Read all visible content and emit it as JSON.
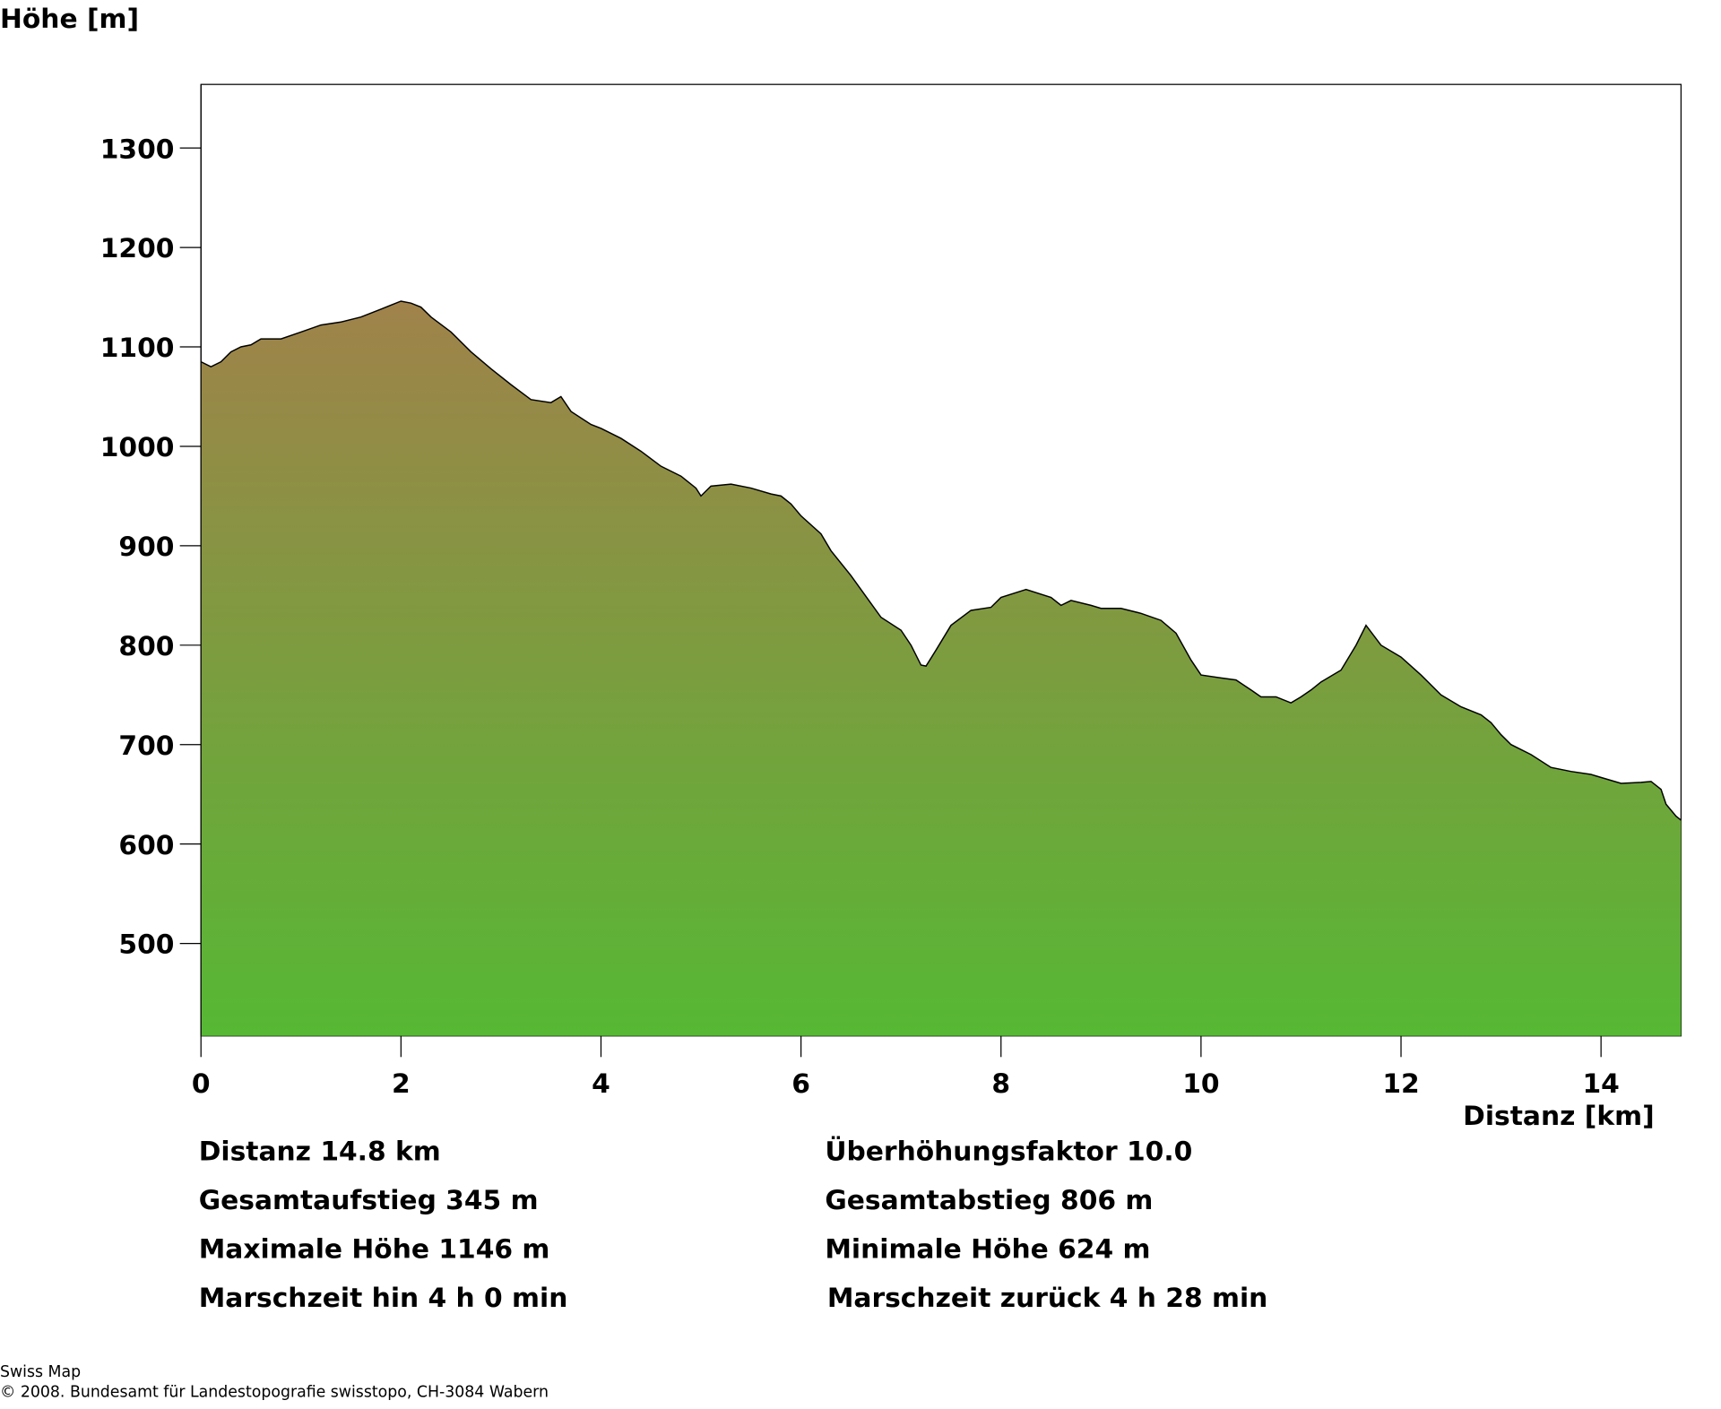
{
  "chart_data": {
    "type": "area",
    "title": "",
    "ylabel": "Höhe [m]",
    "xlabel": "Distanz [km]",
    "xlim": [
      0,
      14.8
    ],
    "ylim": [
      407,
      1364
    ],
    "xticks": [
      0,
      2,
      4,
      6,
      8,
      10,
      12,
      14
    ],
    "yticks": [
      500,
      600,
      700,
      800,
      900,
      1000,
      1100,
      1200,
      1300
    ],
    "grid": false,
    "colors": {
      "top": "#a0824a",
      "bottom": "#56b834",
      "outline": "#000000"
    },
    "x": [
      0,
      0.1,
      0.2,
      0.3,
      0.4,
      0.5,
      0.6,
      0.8,
      1.0,
      1.2,
      1.4,
      1.6,
      1.8,
      1.9,
      2.0,
      2.1,
      2.2,
      2.3,
      2.5,
      2.7,
      2.9,
      3.1,
      3.3,
      3.5,
      3.6,
      3.7,
      3.9,
      4.0,
      4.2,
      4.4,
      4.6,
      4.8,
      4.95,
      5.0,
      5.1,
      5.3,
      5.5,
      5.7,
      5.8,
      5.9,
      6.0,
      6.2,
      6.3,
      6.5,
      6.7,
      6.8,
      7.0,
      7.1,
      7.2,
      7.25,
      7.35,
      7.5,
      7.7,
      7.9,
      8.0,
      8.25,
      8.5,
      8.6,
      8.7,
      8.9,
      9.0,
      9.2,
      9.4,
      9.6,
      9.75,
      9.9,
      10.0,
      10.2,
      10.35,
      10.5,
      10.6,
      10.75,
      10.9,
      11.0,
      11.1,
      11.2,
      11.4,
      11.55,
      11.65,
      11.8,
      12.0,
      12.2,
      12.4,
      12.6,
      12.8,
      12.9,
      13.0,
      13.1,
      13.3,
      13.5,
      13.7,
      13.9,
      14.0,
      14.2,
      14.4,
      14.5,
      14.6,
      14.65,
      14.75,
      14.8
    ],
    "y": [
      1085,
      1080,
      1085,
      1095,
      1100,
      1102,
      1108,
      1108,
      1115,
      1122,
      1125,
      1130,
      1138,
      1142,
      1146,
      1144,
      1140,
      1130,
      1115,
      1095,
      1078,
      1062,
      1047,
      1044,
      1050,
      1035,
      1022,
      1018,
      1008,
      995,
      980,
      970,
      958,
      950,
      960,
      962,
      958,
      952,
      950,
      942,
      930,
      912,
      895,
      870,
      842,
      828,
      815,
      800,
      780,
      779,
      795,
      820,
      835,
      838,
      848,
      856,
      848,
      840,
      845,
      840,
      837,
      837,
      832,
      825,
      812,
      785,
      770,
      767,
      765,
      755,
      748,
      748,
      742,
      748,
      755,
      763,
      775,
      800,
      820,
      800,
      788,
      770,
      750,
      738,
      730,
      722,
      710,
      700,
      690,
      677,
      673,
      670,
      667,
      661,
      662,
      663,
      655,
      640,
      628,
      624
    ]
  },
  "stats": {
    "distance": "Distanz 14.8 km",
    "ascent": "Gesamtaufstieg  345 m",
    "max_height": "Maximale Höhe  1146 m",
    "time_forward": "Marschzeit hin  4 h 0 min",
    "exaggeration": "Überhöhungsfaktor 10.0",
    "descent": "Gesamtabstieg  806 m",
    "min_height": "Minimale Höhe  624 m",
    "time_back": "Marschzeit zurück  4 h 28 min"
  },
  "footer": {
    "line1": "Swiss Map",
    "line2": "© 2008. Bundesamt für Landestopografie swisstopo, CH-3084 Wabern"
  }
}
